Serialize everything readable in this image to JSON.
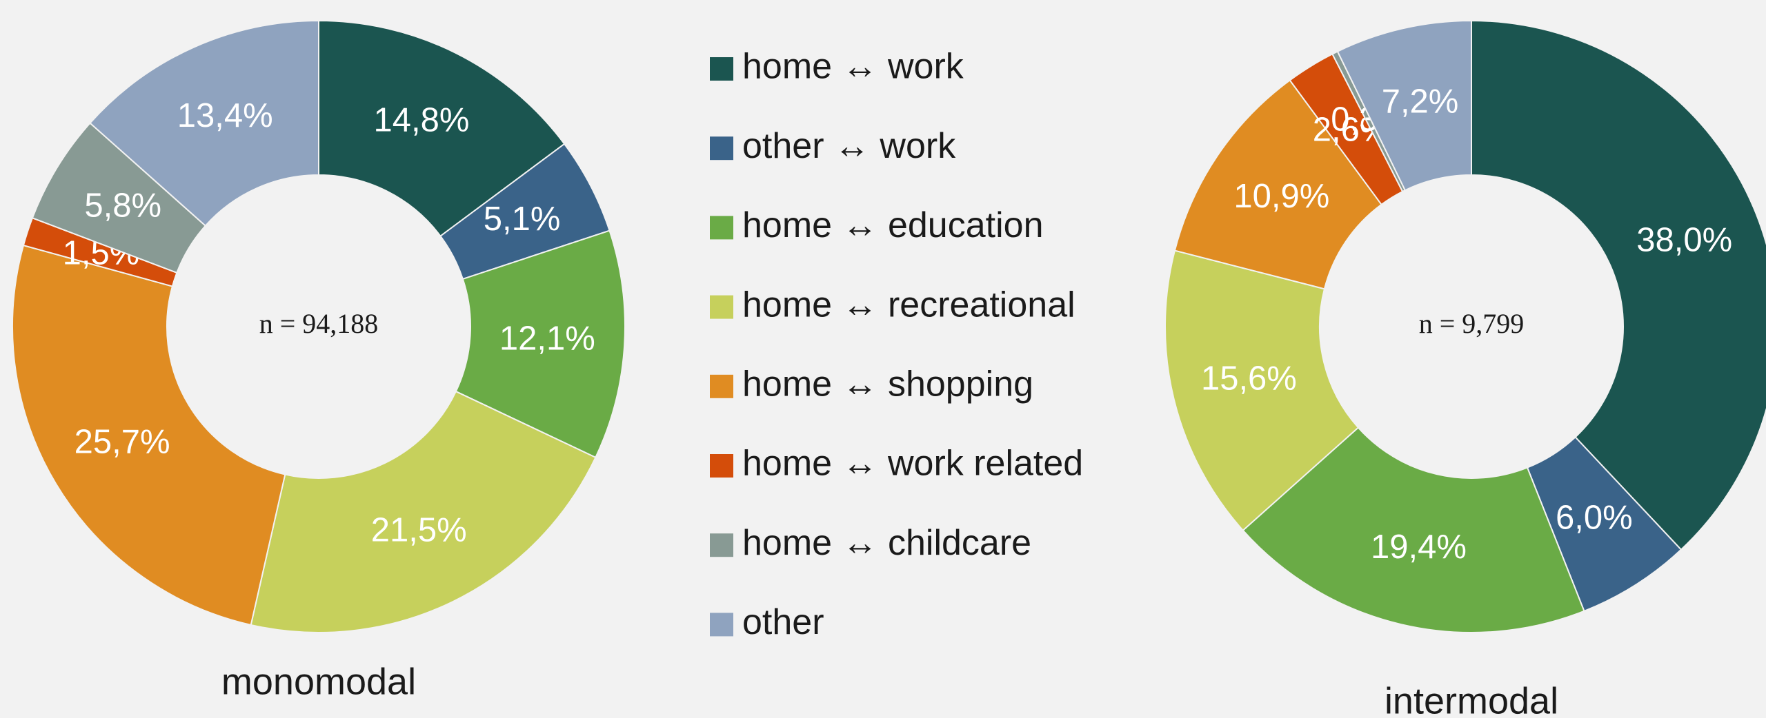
{
  "chart_data": [
    {
      "type": "pie",
      "title": "monomodal",
      "annotation": "n = 94,188",
      "categories": [
        "home ↔ work",
        "other ↔ work",
        "home ↔ education",
        "home ↔ recreational",
        "home ↔ shopping",
        "home ↔ work related",
        "home ↔ childcare",
        "other"
      ],
      "colors": [
        "#1b5550",
        "#3a6389",
        "#6aab46",
        "#c6d05c",
        "#e08c22",
        "#d44d0a",
        "#889a94",
        "#8fa3bf"
      ],
      "values": [
        14.8,
        5.1,
        12.1,
        21.5,
        25.7,
        1.5,
        5.8,
        13.4
      ],
      "value_labels": [
        "14,8%",
        "5,1%",
        "12,1%",
        "21,5%",
        "25,7%",
        "1,5%",
        "5,8%",
        "13,4%"
      ]
    },
    {
      "type": "pie",
      "title": "intermodal",
      "annotation": "n = 9,799",
      "values": [
        38.0,
        6.0,
        19.4,
        15.6,
        10.9,
        2.6,
        0.3,
        7.2
      ],
      "value_labels": [
        "38,0%",
        "6,0%",
        "19,4%",
        "15,6%",
        "10,9%",
        "2,6%",
        "0,3%",
        "7,2%"
      ]
    }
  ]
}
